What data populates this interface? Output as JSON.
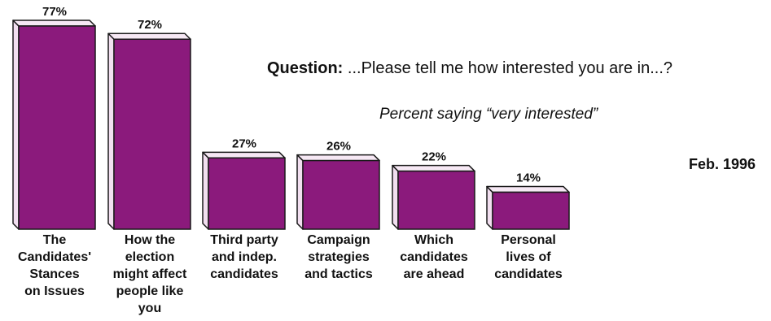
{
  "question": {
    "label": "Question:",
    "text": " ...Please tell me how interested you are in...?"
  },
  "subtitle": "Percent saying “very interested”",
  "date": "Feb. 1996",
  "colors": {
    "bar_front": "#8b1a7c",
    "bar_side": "#f2dff0",
    "bar_top": "#f6e8f4",
    "outline": "#1a1a1a"
  },
  "chart_data": {
    "type": "bar",
    "categories": [
      "The Candidates' Stances on Issues",
      "How the election might affect people like you",
      "Third party and indep. candidates",
      "Campaign strategies and tactics",
      "Which candidates are ahead",
      "Personal lives of candidates"
    ],
    "category_lines": [
      [
        "The",
        "Candidates'",
        "Stances",
        "on Issues"
      ],
      [
        "How the",
        "election",
        "might affect",
        "people like",
        "you"
      ],
      [
        "Third party",
        "and indep.",
        "candidates"
      ],
      [
        "Campaign",
        "strategies",
        "and tactics"
      ],
      [
        "Which",
        "candidates",
        "are ahead"
      ],
      [
        "Personal",
        "lives of",
        "candidates"
      ]
    ],
    "values": [
      77,
      72,
      27,
      26,
      22,
      14
    ],
    "value_labels": [
      "77%",
      "72%",
      "27%",
      "26%",
      "22%",
      "14%"
    ],
    "title": "",
    "xlabel": "",
    "ylabel": "",
    "ylim": [
      0,
      77
    ],
    "grid": false
  }
}
